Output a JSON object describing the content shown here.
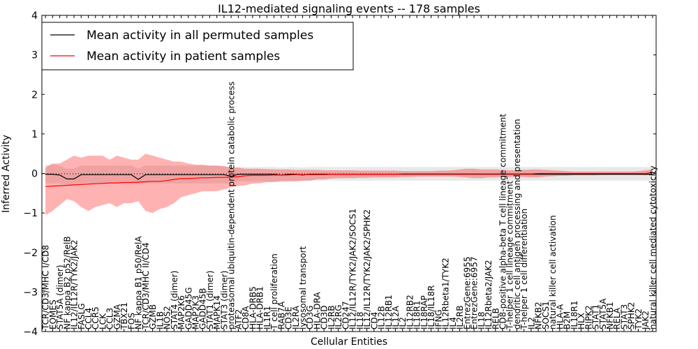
{
  "chart_data": {
    "type": "line",
    "title": "IL12-mediated signaling events -- 178 samples",
    "xlabel": "Cellular Entities",
    "ylabel": "Inferred Activity",
    "ylim": [
      -4,
      4
    ],
    "yticks": [
      -4,
      -3,
      -2,
      -1,
      0,
      1,
      2,
      3,
      4
    ],
    "grid": false,
    "legend_position": "top-left",
    "categories": [
      "TCR/CD3/MHC I/CD8",
      "EOMES",
      "STAT5A (dimer)",
      "NF kappa B2 p52/RelB",
      "IL12/IL12R/TYK2/JAK2",
      "FASLG",
      "CCL4",
      "CCR5",
      "LCK",
      "CCL3",
      "GZMA",
      "TBX21",
      "FOS",
      "NF kappa B1 p50/RelA",
      "TCR/CD3/MHC II/CD4",
      "GZMB",
      "IL1B",
      "NOS2",
      "STAT4 (dimer)",
      "MAP2K6",
      "GADD45G",
      "MAP2K3",
      "GADD45B",
      "STAT1 (dimer)",
      "MAPK14",
      "STAT3 (dimer)",
      "proteasomal ubiquitin-dependent protein catabolic process",
      "ATF2",
      "CD8A",
      "HLA-DRB5",
      "HLA-DRB1",
      "IL1R1",
      "T cell proliferation",
      "RAB7A",
      "CD3E",
      "IL2RA",
      "lysosomal transport",
      "CD3G",
      "HLA-DRA",
      "CD3D",
      "IL2RB",
      "IL2RG",
      "CD247",
      "IL12/IL12R/TYK2/JAK2/SOCS1",
      "IL18",
      "IL12/IL12R/TYK2/JAK2/SPHK2",
      "CD4",
      "IL12B",
      "IL12RB1",
      "IL12A",
      "IL2",
      "IL12RB2",
      "IL18R1",
      "IL18RAP",
      "IL18/IL18R",
      "IFNG",
      "IL12Rbeta1/TYK2",
      "IL4",
      "IL2RB",
      "EntrezGene:6955",
      "EntrezGene:6957",
      "IL18",
      "IL12Rbeta2/JAK2",
      "RELB",
      "CD8-positive alpha-beta T cell lineage commitment",
      "T-helper 1 cell lineage commitment",
      "dendritic cell antigen processing and presentation",
      "T-helper 1 cell differentiation",
      "IL2",
      "NFKB2",
      "SOCS1",
      "natural killer cell activation",
      "HLA-A",
      "B2M",
      "IL18R1",
      "HLX",
      "RIPK2",
      "STAT1",
      "STAT5A",
      "NFKB1",
      "RELA",
      "STAT3",
      "SPHK2",
      "TYK2",
      "JAK2",
      "natural killer cell mediated cytotoxicity"
    ],
    "series": [
      {
        "name": "Mean activity in all permuted samples",
        "color": "#000000",
        "values": [
          -0.02,
          -0.02,
          -0.04,
          -0.14,
          -0.14,
          -0.03,
          -0.03,
          -0.03,
          -0.03,
          -0.03,
          -0.03,
          -0.03,
          -0.03,
          -0.15,
          -0.03,
          -0.03,
          -0.03,
          -0.03,
          -0.03,
          -0.03,
          -0.03,
          -0.03,
          -0.03,
          -0.03,
          -0.03,
          -0.03,
          -0.07,
          -0.02,
          -0.02,
          -0.02,
          -0.02,
          -0.02,
          -0.02,
          -0.04,
          -0.02,
          -0.02,
          -0.04,
          -0.02,
          -0.02,
          -0.02,
          -0.02,
          -0.02,
          -0.02,
          -0.02,
          -0.02,
          -0.02,
          -0.02,
          -0.02,
          -0.02,
          -0.02,
          -0.02,
          -0.02,
          -0.02,
          -0.02,
          -0.02,
          -0.02,
          -0.02,
          -0.02,
          -0.02,
          -0.02,
          -0.02,
          -0.02,
          -0.02,
          -0.02,
          -0.02,
          -0.02,
          -0.02,
          -0.02,
          -0.02,
          -0.02,
          -0.02,
          -0.02,
          -0.02,
          -0.02,
          -0.02,
          -0.02,
          -0.02,
          -0.02,
          -0.02,
          -0.02,
          -0.02,
          -0.02,
          -0.02,
          -0.02,
          -0.02,
          -0.02
        ],
        "lower": [
          -0.25,
          -0.25,
          -0.25,
          -0.28,
          -0.28,
          -0.25,
          -0.25,
          -0.25,
          -0.25,
          -0.25,
          -0.25,
          -0.25,
          -0.25,
          -0.28,
          -0.25,
          -0.25,
          -0.25,
          -0.25,
          -0.25,
          -0.25,
          -0.25,
          -0.25,
          -0.25,
          -0.25,
          -0.25,
          -0.25,
          -0.25,
          -0.2,
          -0.2,
          -0.2,
          -0.2,
          -0.2,
          -0.2,
          -0.2,
          -0.2,
          -0.2,
          -0.2,
          -0.18,
          -0.18,
          -0.18,
          -0.18,
          -0.18,
          -0.18,
          -0.18,
          -0.18,
          -0.18,
          -0.18,
          -0.18,
          -0.18,
          -0.18,
          -0.18,
          -0.18,
          -0.18,
          -0.18,
          -0.18,
          -0.18,
          -0.18,
          -0.18,
          -0.18,
          -0.18,
          -0.18,
          -0.18,
          -0.18,
          -0.18,
          -0.18,
          -0.18,
          -0.18,
          -0.18,
          -0.18,
          -0.18,
          -0.18,
          -0.18,
          -0.18,
          -0.18,
          -0.18,
          -0.18,
          -0.18,
          -0.18,
          -0.18,
          -0.18,
          -0.18,
          -0.18,
          -0.18,
          -0.18,
          -0.18,
          -0.18
        ],
        "upper": [
          0.22,
          0.22,
          0.2,
          0.12,
          0.12,
          0.2,
          0.2,
          0.2,
          0.2,
          0.2,
          0.2,
          0.2,
          0.2,
          0.12,
          0.2,
          0.2,
          0.2,
          0.2,
          0.2,
          0.2,
          0.2,
          0.2,
          0.2,
          0.2,
          0.2,
          0.2,
          0.15,
          0.16,
          0.16,
          0.16,
          0.16,
          0.16,
          0.16,
          0.15,
          0.16,
          0.16,
          0.15,
          0.16,
          0.16,
          0.16,
          0.16,
          0.16,
          0.16,
          0.16,
          0.16,
          0.16,
          0.16,
          0.16,
          0.16,
          0.16,
          0.16,
          0.16,
          0.16,
          0.16,
          0.16,
          0.16,
          0.16,
          0.16,
          0.16,
          0.16,
          0.16,
          0.16,
          0.16,
          0.16,
          0.16,
          0.16,
          0.16,
          0.16,
          0.16,
          0.16,
          0.16,
          0.16,
          0.16,
          0.16,
          0.16,
          0.16,
          0.16,
          0.16,
          0.16,
          0.16,
          0.16,
          0.16,
          0.16,
          0.16,
          0.16,
          0.16
        ]
      },
      {
        "name": "Mean activity in patient samples",
        "color": "#ff0000",
        "values": [
          -0.33,
          -0.32,
          -0.31,
          -0.3,
          -0.29,
          -0.28,
          -0.27,
          -0.26,
          -0.25,
          -0.24,
          -0.24,
          -0.23,
          -0.23,
          -0.22,
          -0.21,
          -0.2,
          -0.2,
          -0.18,
          -0.15,
          -0.13,
          -0.13,
          -0.12,
          -0.11,
          -0.11,
          -0.1,
          -0.1,
          -0.09,
          -0.08,
          -0.06,
          -0.05,
          -0.05,
          -0.05,
          -0.04,
          -0.04,
          -0.04,
          -0.03,
          -0.03,
          -0.03,
          -0.03,
          -0.03,
          -0.02,
          -0.02,
          -0.02,
          -0.02,
          -0.02,
          -0.02,
          -0.02,
          -0.02,
          -0.02,
          -0.02,
          -0.01,
          -0.01,
          -0.01,
          -0.01,
          -0.01,
          -0.01,
          -0.01,
          -0.01,
          -0.01,
          -0.01,
          -0.01,
          -0.01,
          -0.01,
          -0.01,
          -0.01,
          -0.01,
          -0.01,
          -0.01,
          -0.01,
          0.0,
          0.0,
          0.0,
          0.0,
          0.0,
          0.0,
          0.0,
          0.0,
          0.0,
          0.0,
          0.0,
          0.0,
          0.0,
          0.0,
          0.0,
          0.0,
          0.03
        ],
        "lower": [
          -1.05,
          -0.95,
          -0.8,
          -0.65,
          -0.7,
          -0.85,
          -0.95,
          -0.85,
          -0.8,
          -0.75,
          -0.85,
          -0.75,
          -0.75,
          -0.7,
          -0.95,
          -1.0,
          -0.9,
          -0.85,
          -0.75,
          -0.6,
          -0.55,
          -0.5,
          -0.45,
          -0.45,
          -0.45,
          -0.4,
          -0.35,
          -0.32,
          -0.3,
          -0.25,
          -0.25,
          -0.22,
          -0.22,
          -0.2,
          -0.2,
          -0.2,
          -0.18,
          -0.18,
          -0.15,
          -0.15,
          -0.13,
          -0.12,
          -0.12,
          -0.12,
          -0.11,
          -0.11,
          -0.1,
          -0.1,
          -0.1,
          -0.1,
          -0.09,
          -0.09,
          -0.08,
          -0.08,
          -0.08,
          -0.08,
          -0.08,
          -0.08,
          -0.09,
          -0.1,
          -0.12,
          -0.12,
          -0.1,
          -0.1,
          -0.09,
          -0.09,
          -0.08,
          -0.09,
          -0.1,
          -0.1,
          -0.08,
          -0.07,
          -0.06,
          -0.06,
          -0.05,
          -0.05,
          -0.05,
          -0.05,
          -0.04,
          -0.04,
          -0.04,
          -0.04,
          -0.04,
          -0.04,
          -0.05,
          -0.02
        ],
        "upper": [
          0.15,
          0.25,
          0.25,
          0.35,
          0.45,
          0.4,
          0.45,
          0.45,
          0.45,
          0.35,
          0.45,
          0.4,
          0.35,
          0.35,
          0.5,
          0.45,
          0.4,
          0.35,
          0.3,
          0.3,
          0.25,
          0.22,
          0.22,
          0.2,
          0.2,
          0.18,
          0.15,
          0.15,
          0.12,
          0.12,
          0.12,
          0.11,
          0.1,
          0.1,
          0.1,
          0.09,
          0.09,
          0.09,
          0.09,
          0.08,
          0.08,
          0.08,
          0.08,
          0.08,
          0.07,
          0.07,
          0.07,
          0.07,
          0.07,
          0.07,
          0.06,
          0.06,
          0.06,
          0.06,
          0.06,
          0.07,
          0.07,
          0.08,
          0.1,
          0.12,
          0.12,
          0.1,
          0.1,
          0.1,
          0.09,
          0.08,
          0.08,
          0.09,
          0.1,
          0.1,
          0.09,
          0.08,
          0.07,
          0.06,
          0.05,
          0.05,
          0.05,
          0.05,
          0.05,
          0.05,
          0.05,
          0.05,
          0.05,
          0.06,
          0.08,
          0.1
        ]
      }
    ]
  }
}
